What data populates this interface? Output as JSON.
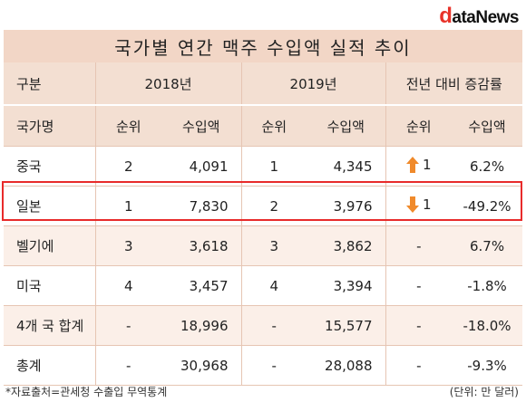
{
  "logo": {
    "first": "d",
    "rest": "ataNews"
  },
  "title": "국가별 연간 맥주 수입액 실적 추이",
  "header": {
    "category": "구분",
    "year1": "2018년",
    "year2": "2019년",
    "change": "전년 대비 증감률",
    "country": "국가명",
    "rank": "순위",
    "amount": "수입액"
  },
  "rows": [
    {
      "country": "중국",
      "rank2018": "2",
      "amt2018": "4,091",
      "rank2019": "1",
      "amt2019": "4,345",
      "rank_change": "1",
      "arrow": "up-arrow-icon",
      "rate": "6.2%"
    },
    {
      "country": "일본",
      "rank2018": "1",
      "amt2018": "7,830",
      "rank2019": "2",
      "amt2019": "3,976",
      "rank_change": "1",
      "arrow": "down-arrow-icon",
      "rate": "-49.2%"
    },
    {
      "country": "벨기에",
      "rank2018": "3",
      "amt2018": "3,618",
      "rank2019": "3",
      "amt2019": "3,862",
      "rank_change": "-",
      "rate": "6.7%"
    },
    {
      "country": "미국",
      "rank2018": "4",
      "amt2018": "3,457",
      "rank2019": "4",
      "amt2019": "3,394",
      "rank_change": "-",
      "rate": "-1.8%"
    },
    {
      "country": "4개 국 합계",
      "rank2018": "-",
      "amt2018": "18,996",
      "rank2019": "-",
      "amt2019": "15,577",
      "rank_change": "-",
      "rate": "-18.0%"
    },
    {
      "country": "총계",
      "rank2018": "-",
      "amt2018": "30,968",
      "rank2019": "-",
      "amt2019": "28,088",
      "rank_change": "-",
      "rate": "-9.3%"
    }
  ],
  "colors": {
    "header_bg": "#f3dfd2",
    "title_bg": "#f2d6c6",
    "alt_row": "#fbefe8",
    "arrow": "#f08a2b",
    "highlight": "#e82b2b"
  },
  "footer": {
    "source": "*자료출처=관세청 수출입 무역통계",
    "unit": "(단위: 만 달러)"
  }
}
